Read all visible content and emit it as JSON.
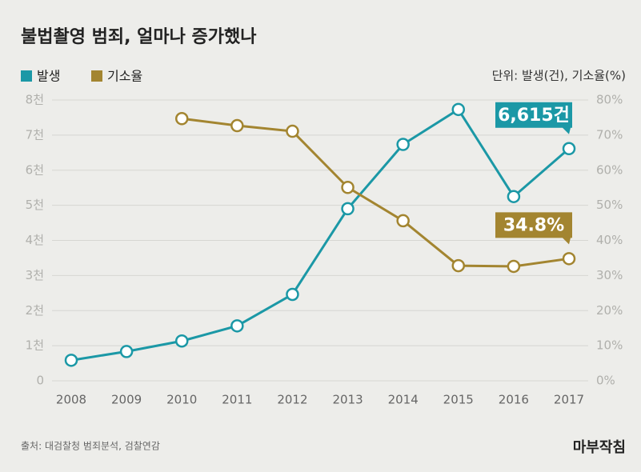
{
  "chart_data": {
    "type": "line",
    "title": "불법촬영 범죄, 얼마나 증가했나",
    "unit_note": "단위: 발생(건), 기소율(%)",
    "source": "출처: 대검찰청 범죄분석, 검찰연감",
    "logo": "마부작침",
    "categories": [
      "2008",
      "2009",
      "2010",
      "2011",
      "2012",
      "2013",
      "2014",
      "2015",
      "2016",
      "2017"
    ],
    "series": [
      {
        "name": "발생",
        "color": "#1b98a6",
        "values": [
          585,
          834,
          1134,
          1565,
          2462,
          4903,
          6735,
          7730,
          5249,
          6615
        ],
        "value_labels": [
          null,
          null,
          null,
          null,
          null,
          null,
          null,
          null,
          null,
          "6,615건"
        ]
      },
      {
        "name": "기소율",
        "color": "#a38530",
        "axis": "y2",
        "values": [
          null,
          null,
          74.7,
          72.7,
          71.1,
          55.1,
          45.6,
          32.8,
          32.6,
          34.8
        ],
        "value_labels": [
          null,
          null,
          null,
          null,
          null,
          null,
          null,
          null,
          null,
          "34.8%"
        ]
      }
    ],
    "ylim": [
      0,
      8000
    ],
    "yticks": [
      0,
      {
        "value": 1000,
        "label": "1천"
      },
      {
        "value": 2000,
        "label": "2천"
      },
      {
        "value": 3000,
        "label": "3천"
      },
      {
        "value": 4000,
        "label": "4천"
      },
      {
        "value": 5000,
        "label": "5천"
      },
      {
        "value": 6000,
        "label": "6천"
      },
      {
        "value": 7000,
        "label": "7천"
      },
      {
        "value": 8000,
        "label": "8천"
      }
    ],
    "y2lim": [
      0,
      80
    ],
    "y2ticks": [
      {
        "value": 0,
        "label": "0%"
      },
      {
        "value": 10,
        "label": "10%"
      },
      {
        "value": 20,
        "label": "20%"
      },
      {
        "value": 30,
        "label": "30%"
      },
      {
        "value": 40,
        "label": "40%"
      },
      {
        "value": 50,
        "label": "50%"
      },
      {
        "value": 60,
        "label": "60%"
      },
      {
        "value": 70,
        "label": "70%"
      },
      {
        "value": 80,
        "label": "80%"
      }
    ],
    "grid": true
  }
}
